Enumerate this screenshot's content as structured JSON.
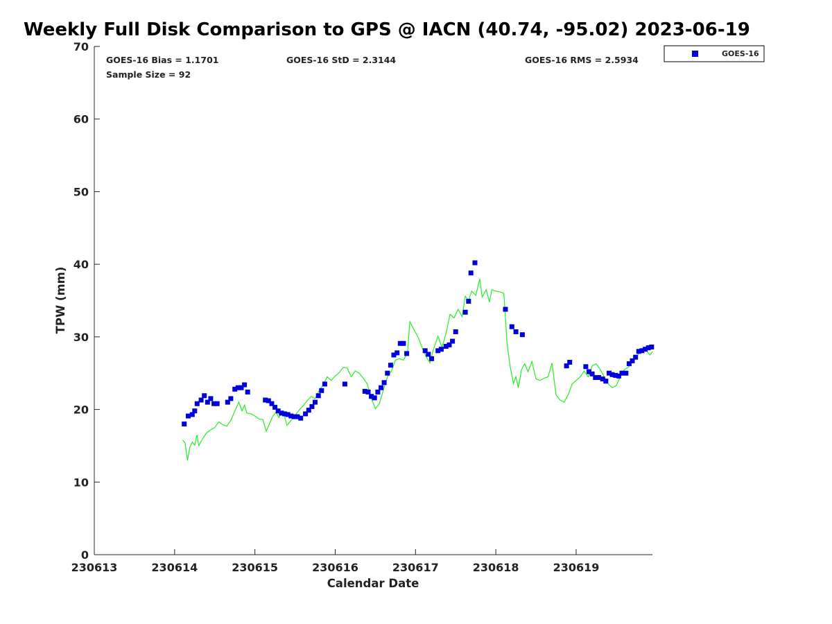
{
  "chart_data": {
    "type": "scatter",
    "title": "Weekly Full Disk Comparison to GPS @ IACN (40.74, -95.02) 2023-06-19",
    "xlabel": "Calendar Date",
    "ylabel": "TPW (mm)",
    "xlim": [
      0,
      6.95
    ],
    "ylim": [
      0,
      70
    ],
    "x_ticks": [
      0,
      1,
      2,
      3,
      4,
      5,
      6
    ],
    "x_tick_labels": [
      "230613",
      "230614",
      "230615",
      "230616",
      "230617",
      "230618",
      "230619"
    ],
    "y_ticks": [
      0,
      10,
      20,
      30,
      40,
      50,
      60,
      70
    ],
    "y_tick_labels": [
      "0",
      "10",
      "20",
      "30",
      "40",
      "50",
      "60",
      "70"
    ],
    "grid": false,
    "legend_position": "outside-top-right",
    "stats": {
      "bias": "GOES-16 Bias = 1.1701",
      "std": "GOES-16 StD = 2.3144",
      "rms": "GOES-16 RMS = 2.5934",
      "sample": "Sample Size = 92"
    },
    "series": [
      {
        "name": "GOES-16",
        "kind": "scatter",
        "marker": "square",
        "color": "#0000dd",
        "points": [
          [
            1.12,
            18.0
          ],
          [
            1.17,
            19.1
          ],
          [
            1.22,
            19.3
          ],
          [
            1.25,
            19.8
          ],
          [
            1.28,
            20.8
          ],
          [
            1.33,
            21.3
          ],
          [
            1.37,
            21.9
          ],
          [
            1.41,
            21.0
          ],
          [
            1.45,
            21.5
          ],
          [
            1.49,
            20.8
          ],
          [
            1.53,
            20.8
          ],
          [
            1.66,
            21.0
          ],
          [
            1.7,
            21.5
          ],
          [
            1.75,
            22.8
          ],
          [
            1.79,
            23.0
          ],
          [
            1.83,
            23.0
          ],
          [
            1.87,
            23.4
          ],
          [
            1.91,
            22.4
          ],
          [
            2.13,
            21.3
          ],
          [
            2.17,
            21.2
          ],
          [
            2.21,
            20.8
          ],
          [
            2.25,
            20.3
          ],
          [
            2.29,
            19.8
          ],
          [
            2.33,
            19.5
          ],
          [
            2.37,
            19.4
          ],
          [
            2.41,
            19.3
          ],
          [
            2.45,
            19.1
          ],
          [
            2.49,
            19.0
          ],
          [
            2.53,
            19.0
          ],
          [
            2.57,
            18.8
          ],
          [
            2.63,
            19.4
          ],
          [
            2.67,
            19.9
          ],
          [
            2.71,
            20.4
          ],
          [
            2.75,
            21.0
          ],
          [
            2.79,
            21.9
          ],
          [
            2.83,
            22.6
          ],
          [
            2.87,
            23.5
          ],
          [
            3.12,
            23.5
          ],
          [
            3.37,
            22.5
          ],
          [
            3.41,
            22.4
          ],
          [
            3.45,
            21.8
          ],
          [
            3.49,
            21.6
          ],
          [
            3.53,
            22.4
          ],
          [
            3.57,
            23.0
          ],
          [
            3.61,
            23.7
          ],
          [
            3.65,
            25.0
          ],
          [
            3.69,
            26.1
          ],
          [
            3.73,
            27.5
          ],
          [
            3.77,
            27.8
          ],
          [
            3.81,
            29.1
          ],
          [
            3.85,
            29.1
          ],
          [
            3.89,
            27.7
          ],
          [
            4.12,
            28.1
          ],
          [
            4.16,
            27.6
          ],
          [
            4.2,
            27.0
          ],
          [
            4.28,
            28.1
          ],
          [
            4.32,
            28.3
          ],
          [
            4.38,
            28.7
          ],
          [
            4.42,
            28.9
          ],
          [
            4.46,
            29.4
          ],
          [
            4.5,
            30.7
          ],
          [
            4.62,
            33.4
          ],
          [
            4.66,
            34.9
          ],
          [
            4.69,
            38.8
          ],
          [
            4.74,
            40.2
          ],
          [
            5.12,
            33.8
          ],
          [
            5.2,
            31.4
          ],
          [
            5.25,
            30.7
          ],
          [
            5.33,
            30.3
          ],
          [
            5.88,
            26.0
          ],
          [
            5.92,
            26.5
          ],
          [
            6.12,
            25.9
          ],
          [
            6.16,
            25.2
          ],
          [
            6.2,
            24.9
          ],
          [
            6.24,
            24.4
          ],
          [
            6.28,
            24.4
          ],
          [
            6.33,
            24.2
          ],
          [
            6.37,
            23.9
          ],
          [
            6.41,
            25.0
          ],
          [
            6.45,
            24.8
          ],
          [
            6.49,
            24.7
          ],
          [
            6.53,
            24.6
          ],
          [
            6.57,
            25.0
          ],
          [
            6.62,
            25.0
          ],
          [
            6.66,
            26.3
          ],
          [
            6.7,
            26.7
          ],
          [
            6.74,
            27.2
          ],
          [
            6.78,
            28.0
          ],
          [
            6.82,
            28.1
          ],
          [
            6.86,
            28.3
          ],
          [
            6.9,
            28.5
          ],
          [
            6.94,
            28.6
          ]
        ]
      },
      {
        "kind": "line",
        "color": "#22ee22",
        "points": [
          [
            1.1,
            15.8
          ],
          [
            1.13,
            15.4
          ],
          [
            1.16,
            13.0
          ],
          [
            1.19,
            14.8
          ],
          [
            1.22,
            15.5
          ],
          [
            1.25,
            15.1
          ],
          [
            1.28,
            16.5
          ],
          [
            1.3,
            15.0
          ],
          [
            1.35,
            16.0
          ],
          [
            1.4,
            16.8
          ],
          [
            1.45,
            17.2
          ],
          [
            1.5,
            17.5
          ],
          [
            1.55,
            18.3
          ],
          [
            1.6,
            17.9
          ],
          [
            1.65,
            17.7
          ],
          [
            1.7,
            18.5
          ],
          [
            1.75,
            19.8
          ],
          [
            1.8,
            21.0
          ],
          [
            1.84,
            19.8
          ],
          [
            1.87,
            20.6
          ],
          [
            1.9,
            19.5
          ],
          [
            1.95,
            19.4
          ],
          [
            2.0,
            19.1
          ],
          [
            2.05,
            18.7
          ],
          [
            2.1,
            18.6
          ],
          [
            2.14,
            17.0
          ],
          [
            2.18,
            18.0
          ],
          [
            2.22,
            19.0
          ],
          [
            2.26,
            19.6
          ],
          [
            2.3,
            18.9
          ],
          [
            2.35,
            19.8
          ],
          [
            2.4,
            17.8
          ],
          [
            2.45,
            18.5
          ],
          [
            2.5,
            19.2
          ],
          [
            2.55,
            19.9
          ],
          [
            2.6,
            20.5
          ],
          [
            2.65,
            21.2
          ],
          [
            2.7,
            21.8
          ],
          [
            2.75,
            21.5
          ],
          [
            2.8,
            22.6
          ],
          [
            2.85,
            23.4
          ],
          [
            2.9,
            24.5
          ],
          [
            2.95,
            24.0
          ],
          [
            3.0,
            24.6
          ],
          [
            3.05,
            25.1
          ],
          [
            3.1,
            25.8
          ],
          [
            3.15,
            25.7
          ],
          [
            3.2,
            24.5
          ],
          [
            3.25,
            25.3
          ],
          [
            3.3,
            25.0
          ],
          [
            3.35,
            24.3
          ],
          [
            3.4,
            23.5
          ],
          [
            3.45,
            21.5
          ],
          [
            3.5,
            20.1
          ],
          [
            3.55,
            20.8
          ],
          [
            3.6,
            22.7
          ],
          [
            3.65,
            24.5
          ],
          [
            3.7,
            25.3
          ],
          [
            3.75,
            26.8
          ],
          [
            3.8,
            27.0
          ],
          [
            3.85,
            26.8
          ],
          [
            3.9,
            27.8
          ],
          [
            3.93,
            32.1
          ],
          [
            3.98,
            31.0
          ],
          [
            4.03,
            30.0
          ],
          [
            4.08,
            28.6
          ],
          [
            4.13,
            27.3
          ],
          [
            4.18,
            26.4
          ],
          [
            4.22,
            28.2
          ],
          [
            4.28,
            30.1
          ],
          [
            4.33,
            28.5
          ],
          [
            4.38,
            30.5
          ],
          [
            4.43,
            33.1
          ],
          [
            4.48,
            32.6
          ],
          [
            4.53,
            33.8
          ],
          [
            4.58,
            32.8
          ],
          [
            4.62,
            35.6
          ],
          [
            4.66,
            35.0
          ],
          [
            4.7,
            36.3
          ],
          [
            4.75,
            35.7
          ],
          [
            4.8,
            38.0
          ],
          [
            4.83,
            35.5
          ],
          [
            4.88,
            36.5
          ],
          [
            4.92,
            34.8
          ],
          [
            4.95,
            36.5
          ],
          [
            5.0,
            36.3
          ],
          [
            5.05,
            36.2
          ],
          [
            5.1,
            36.0
          ],
          [
            5.14,
            29.0
          ],
          [
            5.18,
            25.8
          ],
          [
            5.22,
            23.6
          ],
          [
            5.25,
            24.5
          ],
          [
            5.28,
            23.0
          ],
          [
            5.32,
            25.5
          ],
          [
            5.36,
            26.3
          ],
          [
            5.4,
            25.2
          ],
          [
            5.45,
            26.6
          ],
          [
            5.5,
            24.2
          ],
          [
            5.55,
            24.0
          ],
          [
            5.6,
            24.3
          ],
          [
            5.65,
            24.5
          ],
          [
            5.7,
            26.4
          ],
          [
            5.75,
            22.0
          ],
          [
            5.8,
            21.3
          ],
          [
            5.85,
            21.0
          ],
          [
            5.9,
            22.0
          ],
          [
            5.95,
            23.5
          ],
          [
            6.0,
            24.0
          ],
          [
            6.05,
            24.5
          ],
          [
            6.1,
            25.3
          ],
          [
            6.15,
            24.5
          ],
          [
            6.2,
            26.0
          ],
          [
            6.25,
            26.3
          ],
          [
            6.3,
            25.5
          ],
          [
            6.35,
            24.5
          ],
          [
            6.4,
            23.5
          ],
          [
            6.45,
            23.0
          ],
          [
            6.5,
            23.3
          ],
          [
            6.55,
            24.5
          ],
          [
            6.6,
            25.5
          ],
          [
            6.65,
            25.8
          ],
          [
            6.7,
            26.5
          ],
          [
            6.75,
            27.2
          ],
          [
            6.8,
            28.1
          ],
          [
            6.84,
            28.4
          ],
          [
            6.88,
            28.0
          ],
          [
            6.92,
            27.5
          ],
          [
            6.95,
            28.0
          ]
        ]
      }
    ]
  }
}
